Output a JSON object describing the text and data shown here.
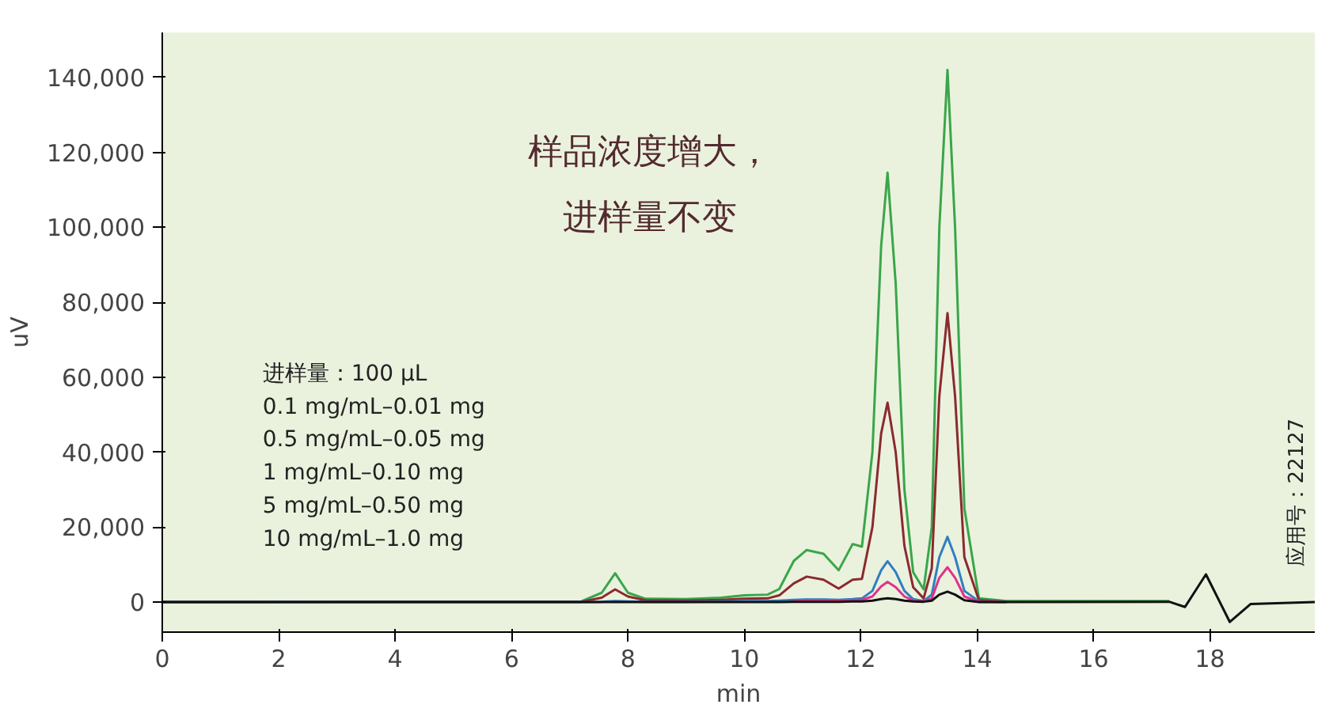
{
  "chart_data": {
    "type": "line",
    "xlabel": "min",
    "ylabel": "uV",
    "x": [
      0,
      7.2,
      7.55,
      7.78,
      8.0,
      8.3,
      9.0,
      9.6,
      10.0,
      10.4,
      10.6,
      10.85,
      11.07,
      11.36,
      11.62,
      11.86,
      12.02,
      12.2,
      12.35,
      12.46,
      12.6,
      12.75,
      12.9,
      13.08,
      13.22,
      13.35,
      13.49,
      13.62,
      13.78,
      14.03,
      14.5,
      17.3,
      17.57,
      17.93,
      18.34,
      18.7,
      19.8
    ],
    "series": [
      {
        "color": "#3aa64a",
        "values": [
          0,
          200,
          2500,
          7700,
          2500,
          900,
          800,
          1200,
          1800,
          2000,
          3500,
          11000,
          13900,
          12900,
          8500,
          15500,
          14800,
          40000,
          95000,
          114600,
          85000,
          30000,
          8000,
          3400,
          20000,
          100000,
          142000,
          100000,
          25000,
          1000,
          300,
          300,
          null,
          null,
          null,
          null,
          null
        ]
      },
      {
        "color": "#8b2a2e",
        "values": [
          0,
          100,
          1200,
          3400,
          1500,
          500,
          400,
          600,
          900,
          1000,
          1800,
          5000,
          6800,
          6000,
          3600,
          6000,
          6200,
          20000,
          45000,
          53200,
          40000,
          15000,
          4000,
          1000,
          9000,
          55000,
          77100,
          55000,
          12000,
          500,
          100,
          null,
          null,
          null,
          null,
          null,
          null
        ]
      },
      {
        "color": "#2f7fc1",
        "values": [
          0,
          0,
          100,
          300,
          200,
          100,
          100,
          200,
          300,
          300,
          400,
          600,
          700,
          700,
          600,
          800,
          1000,
          3000,
          8500,
          10900,
          8000,
          3000,
          800,
          300,
          2000,
          12000,
          17400,
          12000,
          3000,
          200,
          0,
          null,
          null,
          null,
          null,
          null,
          null
        ]
      },
      {
        "color": "#e0338a",
        "values": [
          null,
          null,
          null,
          null,
          null,
          null,
          null,
          null,
          null,
          null,
          null,
          300,
          400,
          400,
          400,
          500,
          600,
          1500,
          4200,
          5400,
          4000,
          1500,
          400,
          200,
          1000,
          6500,
          9300,
          6500,
          1500,
          100,
          0,
          null,
          null,
          null,
          null,
          null,
          null
        ]
      },
      {
        "color": "#111111",
        "values": [
          0,
          0,
          0,
          0,
          0,
          0,
          0,
          0,
          0,
          0,
          0,
          100,
          100,
          100,
          100,
          200,
          200,
          400,
          800,
          1000,
          800,
          400,
          200,
          100,
          400,
          2000,
          2800,
          2000,
          500,
          0,
          0,
          100,
          -1300,
          7400,
          -5300,
          -500,
          0
        ]
      }
    ],
    "xlim": [
      0,
      19.8
    ],
    "ylim": [
      -8000,
      152000
    ],
    "xticks": [
      0,
      2,
      4,
      6,
      8,
      10,
      12,
      14,
      16,
      18
    ],
    "yticks": [
      {
        "value": 0,
        "label": "0"
      },
      {
        "value": 20000,
        "label": "20,000"
      },
      {
        "value": 40000,
        "label": "40,000"
      },
      {
        "value": 60000,
        "label": "60,000"
      },
      {
        "value": 80000,
        "label": "80,000"
      },
      {
        "value": 100000,
        "label": "100,000"
      },
      {
        "value": 120000,
        "label": "120,000"
      },
      {
        "value": 140000,
        "label": "140,000"
      }
    ],
    "annotations": [
      "样品浓度增大，进样量不变",
      "进样量：100 µL",
      "0.1 mg/mL–0.01 mg",
      "0.5 mg/mL–0.05 mg",
      "1 mg/mL–0.10 mg",
      "5 mg/mL–0.50 mg",
      "10 mg/mL–1.0 mg",
      "应用号：22127"
    ],
    "grid": false,
    "line_style": "solid"
  }
}
